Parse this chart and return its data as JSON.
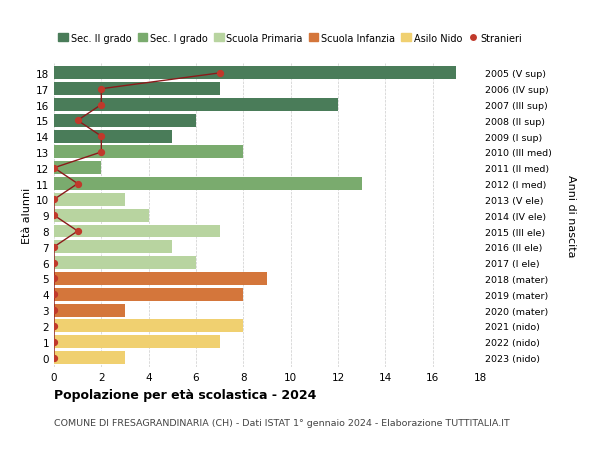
{
  "ages": [
    18,
    17,
    16,
    15,
    14,
    13,
    12,
    11,
    10,
    9,
    8,
    7,
    6,
    5,
    4,
    3,
    2,
    1,
    0
  ],
  "right_labels": [
    "2005 (V sup)",
    "2006 (IV sup)",
    "2007 (III sup)",
    "2008 (II sup)",
    "2009 (I sup)",
    "2010 (III med)",
    "2011 (II med)",
    "2012 (I med)",
    "2013 (V ele)",
    "2014 (IV ele)",
    "2015 (III ele)",
    "2016 (II ele)",
    "2017 (I ele)",
    "2018 (mater)",
    "2019 (mater)",
    "2020 (mater)",
    "2021 (nido)",
    "2022 (nido)",
    "2023 (nido)"
  ],
  "bar_values": [
    17,
    7,
    12,
    6,
    5,
    8,
    2,
    13,
    3,
    4,
    7,
    5,
    6,
    9,
    8,
    3,
    8,
    7,
    3
  ],
  "bar_colors": [
    "#4a7c59",
    "#4a7c59",
    "#4a7c59",
    "#4a7c59",
    "#4a7c59",
    "#7aab6e",
    "#7aab6e",
    "#7aab6e",
    "#b8d4a0",
    "#b8d4a0",
    "#b8d4a0",
    "#b8d4a0",
    "#b8d4a0",
    "#d4763b",
    "#d4763b",
    "#d4763b",
    "#f0d070",
    "#f0d070",
    "#f0d070"
  ],
  "stranieri_x": [
    7,
    2,
    2,
    1,
    2,
    2,
    0,
    1,
    0,
    0,
    1,
    0,
    0,
    0,
    0,
    0,
    0,
    0,
    0
  ],
  "legend_labels": [
    "Sec. II grado",
    "Sec. I grado",
    "Scuola Primaria",
    "Scuola Infanzia",
    "Asilo Nido",
    "Stranieri"
  ],
  "legend_colors": [
    "#4a7c59",
    "#7aab6e",
    "#b8d4a0",
    "#d4763b",
    "#f0d070",
    "#c0392b"
  ],
  "title": "Popolazione per età scolastica - 2024",
  "subtitle": "COMUNE DI FRESAGRANDINARIA (CH) - Dati ISTAT 1° gennaio 2024 - Elaborazione TUTTITALIA.IT",
  "left_ylabel": "Età alunni",
  "right_ylabel": "Anni di nascita",
  "xlim": [
    0,
    18
  ],
  "background_color": "#ffffff",
  "bar_height": 0.82,
  "stranieri_color": "#c0392b",
  "line_color": "#8b1a1a",
  "grid_color": "#cccccc",
  "title_fontsize": 9,
  "subtitle_fontsize": 6.8,
  "tick_fontsize": 7.5,
  "legend_fontsize": 7.0,
  "ylabel_fontsize": 8.0
}
